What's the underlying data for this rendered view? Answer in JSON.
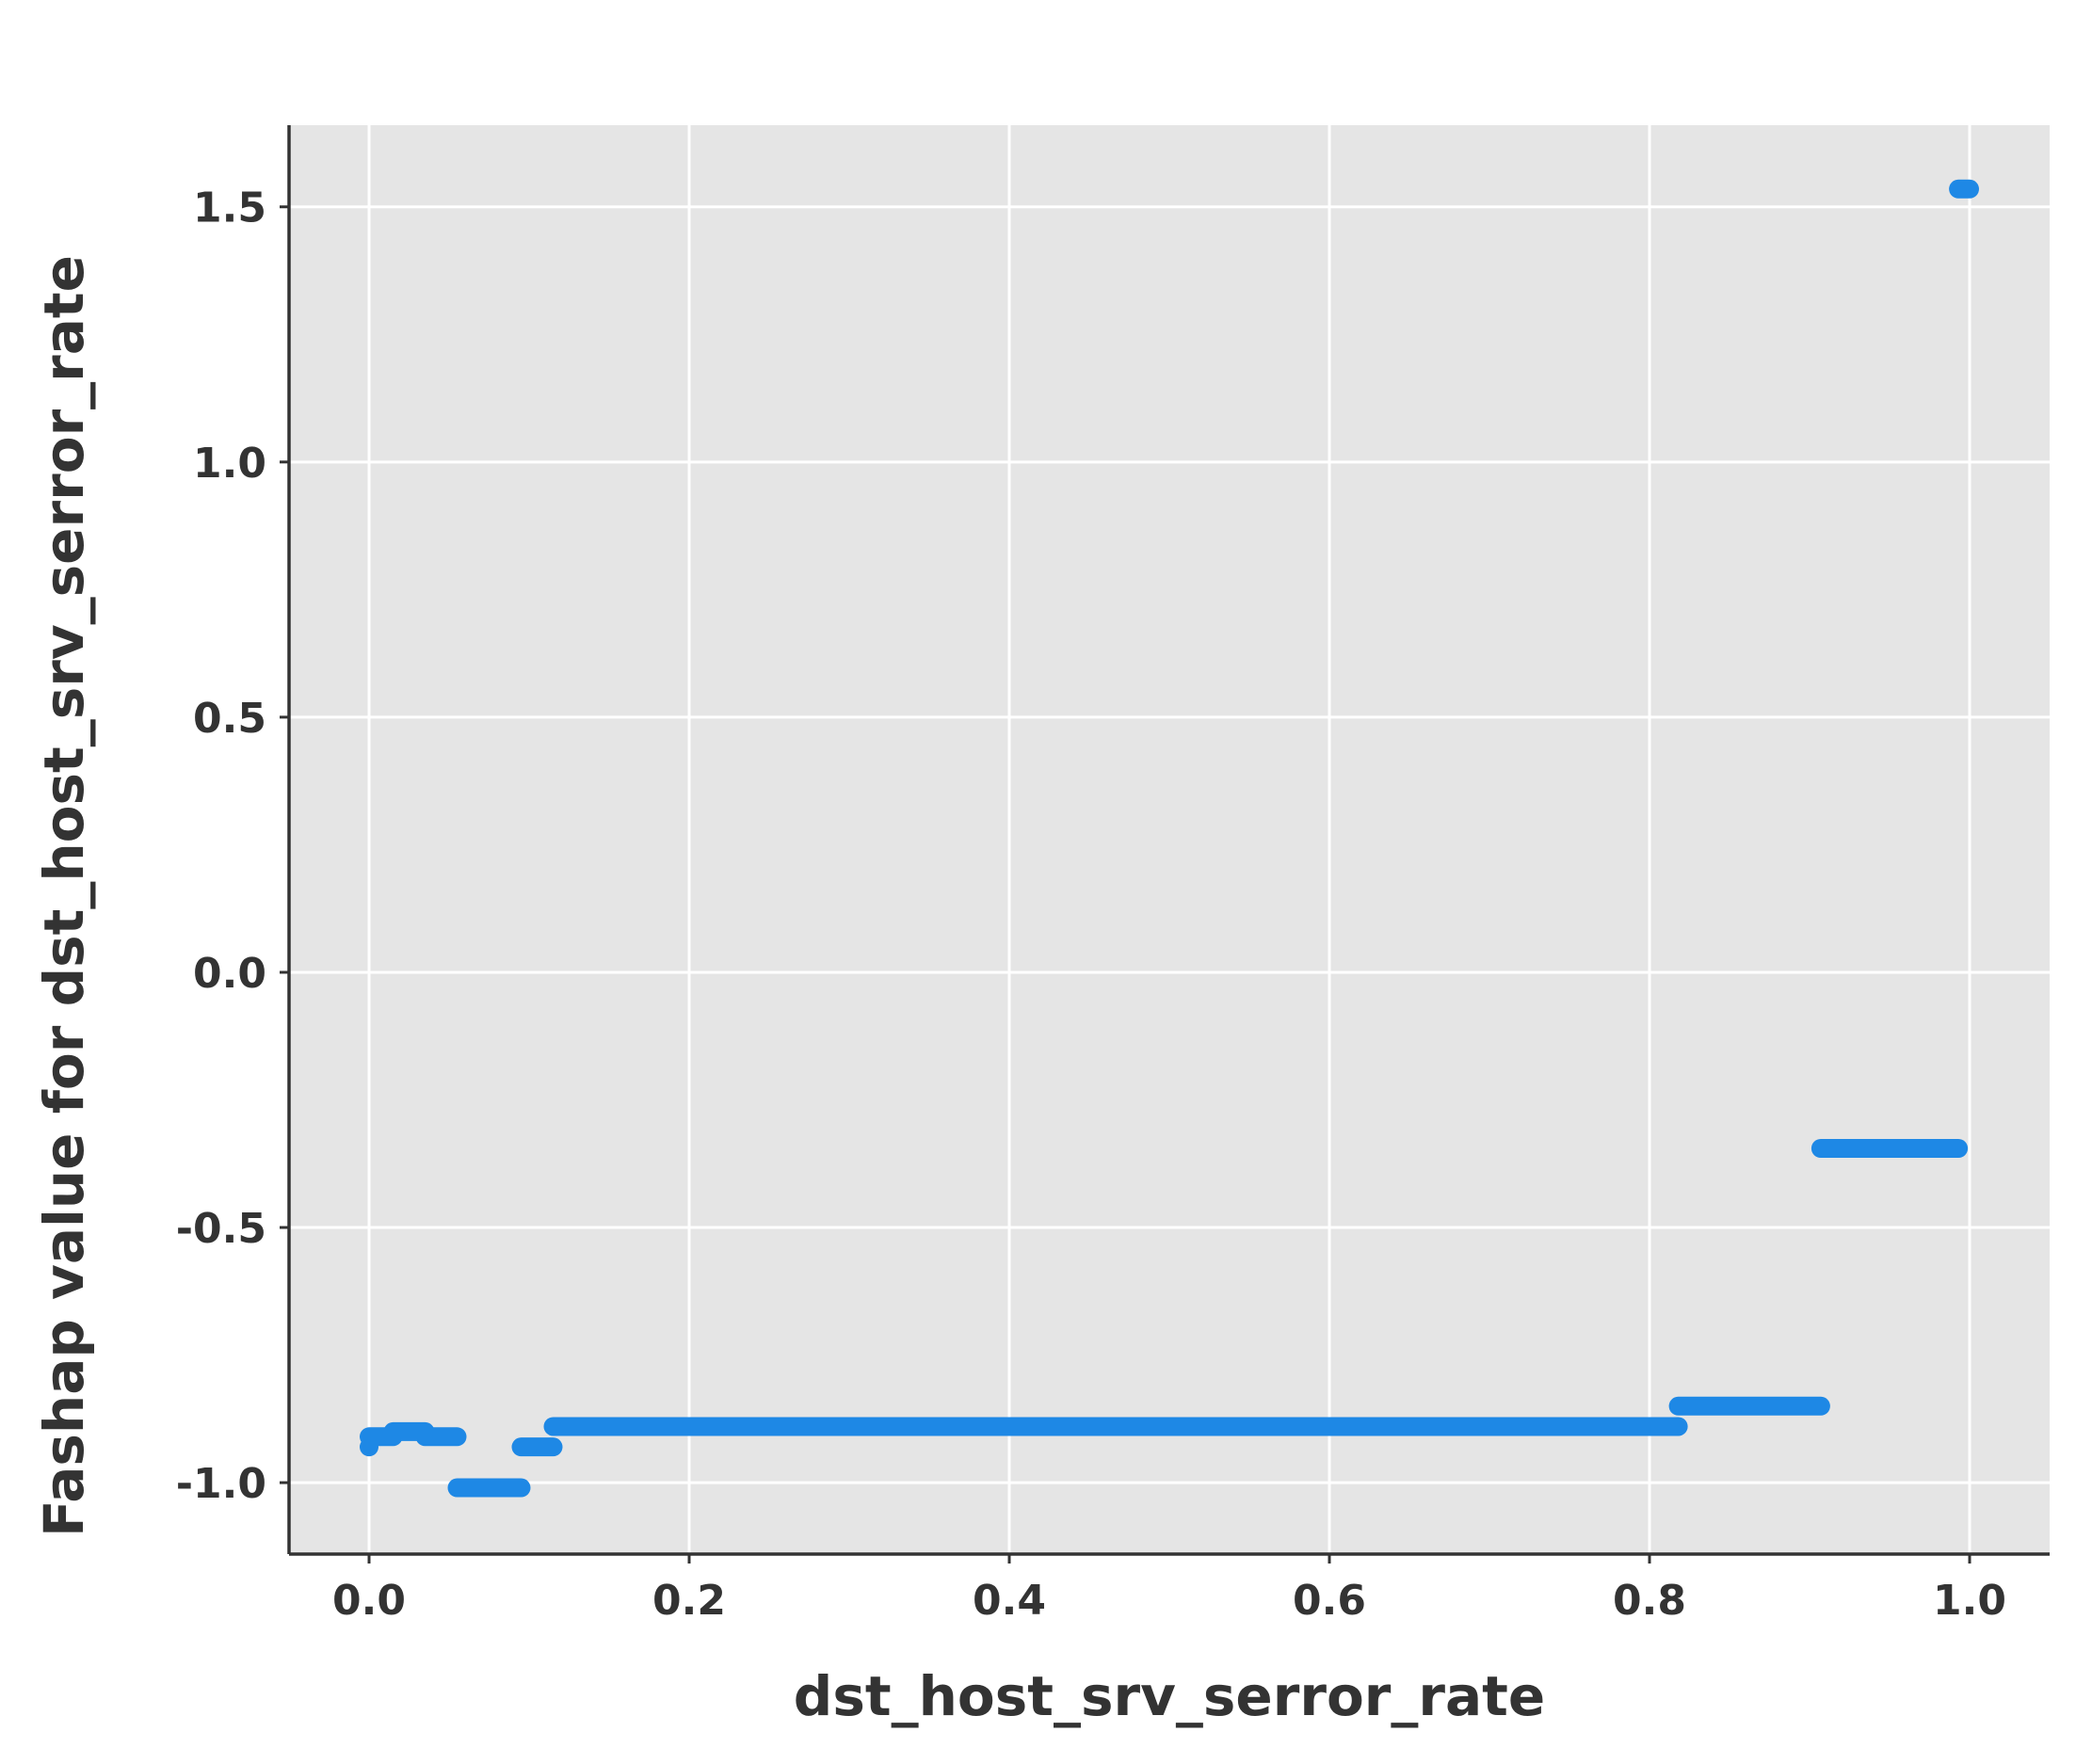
{
  "chart_data": {
    "type": "scatter",
    "title": "",
    "xlabel": "dst_host_srv_serror_rate",
    "ylabel": "Fashap value for dst_host_srv_serror_rate",
    "xlim": [
      -0.05,
      1.05
    ],
    "ylim": [
      -1.14,
      1.66
    ],
    "grid": true,
    "x_ticks": [
      0.0,
      0.2,
      0.4,
      0.6,
      0.8,
      1.0
    ],
    "x_tick_labels": [
      "0.0",
      "0.2",
      "0.4",
      "0.6",
      "0.8",
      "1.0"
    ],
    "y_ticks": [
      -1.0,
      -0.5,
      0.0,
      0.5,
      1.0,
      1.5
    ],
    "y_tick_labels": [
      "-1.0",
      "-0.5",
      "0.0",
      "0.5",
      "1.0",
      "1.5"
    ],
    "series": [
      {
        "color": "#1e88e5",
        "segments": [
          {
            "x_start": 0.0,
            "x_end": 0.0,
            "y": -0.93
          },
          {
            "x_start": 0.0,
            "x_end": 0.015,
            "y": -0.91
          },
          {
            "x_start": 0.015,
            "x_end": 0.035,
            "y": -0.9
          },
          {
            "x_start": 0.035,
            "x_end": 0.055,
            "y": -0.91
          },
          {
            "x_start": 0.055,
            "x_end": 0.095,
            "y": -1.01
          },
          {
            "x_start": 0.095,
            "x_end": 0.115,
            "y": -0.93
          },
          {
            "x_start": 0.115,
            "x_end": 0.818,
            "y": -0.89
          },
          {
            "x_start": 0.818,
            "x_end": 0.907,
            "y": -0.85
          },
          {
            "x_start": 0.907,
            "x_end": 0.993,
            "y": -0.345
          },
          {
            "x_start": 0.993,
            "x_end": 1.0,
            "y": 1.535
          }
        ]
      }
    ]
  }
}
